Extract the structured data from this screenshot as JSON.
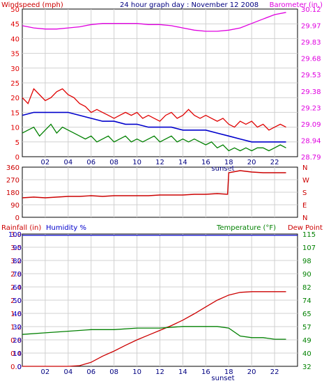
{
  "header": {
    "windspeed_label": "Windspeed (mph)",
    "title": "24 hour graph day : November 12 2008",
    "barometer_label": "Barometer (in.)"
  },
  "colors": {
    "wind_gust": "#e00000",
    "wind_avg": "#0000cc",
    "wind_speed": "#008000",
    "barometer": "#e000e0",
    "direction": "#cc0000",
    "rainfall": "#cc0000",
    "humidity": "#0000cc",
    "temperature": "#008000",
    "dewpoint": "#cc0000",
    "axis_text": "#000080",
    "grid": "#d0d0d0",
    "frame": "#000000"
  },
  "bottom_header": {
    "rainfall_label": "Rainfall (in)",
    "humidity_label": "Humidity %",
    "temperature_label": "Temperature (°F)",
    "dewpoint_label": "Dew Point"
  },
  "x_axis": {
    "ticks": [
      "02",
      "04",
      "06",
      "08",
      "10",
      "12",
      "14",
      "16",
      "18",
      "20",
      "22"
    ],
    "sunset_label": "sunset"
  },
  "chart_data": [
    {
      "type": "line",
      "name": "wind-and-pressure",
      "xlim": [
        0,
        24
      ],
      "left_axis": {
        "label": "Windspeed (mph)",
        "ticks": [
          "0",
          "5",
          "10",
          "15",
          "20",
          "25",
          "30",
          "35",
          "40",
          "45",
          "50"
        ],
        "ylim": [
          0,
          50
        ]
      },
      "right_axis": {
        "label": "Barometer (in.)",
        "ticks": [
          "28.79",
          "28.94",
          "29.09",
          "29.23",
          "29.38",
          "29.53",
          "29.68",
          "29.83",
          "29.97",
          "30.12"
        ],
        "ylim": [
          28.79,
          30.12
        ]
      },
      "series": [
        {
          "name": "gust",
          "axis": "left",
          "x": [
            0,
            0.5,
            1,
            1.5,
            2,
            2.5,
            3,
            3.5,
            4,
            4.5,
            5,
            5.5,
            6,
            6.5,
            7,
            7.5,
            8,
            8.5,
            9,
            9.5,
            10,
            10.5,
            11,
            11.5,
            12,
            12.5,
            13,
            13.5,
            14,
            14.5,
            15,
            15.5,
            16,
            16.5,
            17,
            17.5,
            18,
            18.5,
            19,
            19.5,
            20,
            20.5,
            21,
            21.5,
            22,
            22.5,
            23
          ],
          "values": [
            20,
            18,
            23,
            21,
            19,
            20,
            22,
            23,
            21,
            20,
            18,
            17,
            15,
            16,
            15,
            14,
            13,
            14,
            15,
            14,
            15,
            13,
            14,
            13,
            12,
            14,
            15,
            13,
            14,
            16,
            14,
            13,
            14,
            13,
            12,
            13,
            11,
            10,
            12,
            11,
            12,
            10,
            11,
            9,
            10,
            11,
            10
          ]
        },
        {
          "name": "average",
          "axis": "left",
          "x": [
            0,
            1,
            2,
            3,
            4,
            5,
            6,
            7,
            8,
            9,
            10,
            11,
            12,
            13,
            14,
            15,
            16,
            17,
            18,
            19,
            20,
            21,
            22,
            23
          ],
          "values": [
            14,
            15,
            15,
            15,
            15,
            14,
            13,
            12,
            12,
            11,
            11,
            10,
            10,
            10,
            9,
            9,
            9,
            8,
            7,
            6,
            5,
            5,
            5,
            5
          ]
        },
        {
          "name": "speed",
          "axis": "left",
          "x": [
            0,
            0.5,
            1,
            1.5,
            2,
            2.5,
            3,
            3.5,
            4,
            4.5,
            5,
            5.5,
            6,
            6.5,
            7,
            7.5,
            8,
            8.5,
            9,
            9.5,
            10,
            10.5,
            11,
            11.5,
            12,
            12.5,
            13,
            13.5,
            14,
            14.5,
            15,
            15.5,
            16,
            16.5,
            17,
            17.5,
            18,
            18.5,
            19,
            19.5,
            20,
            20.5,
            21,
            21.5,
            22,
            22.5,
            23
          ],
          "values": [
            8,
            9,
            10,
            7,
            9,
            11,
            8,
            10,
            9,
            8,
            7,
            6,
            7,
            5,
            6,
            7,
            5,
            6,
            7,
            5,
            6,
            5,
            6,
            7,
            5,
            6,
            7,
            5,
            6,
            5,
            6,
            5,
            4,
            5,
            3,
            4,
            2,
            3,
            2,
            3,
            2,
            3,
            3,
            2,
            3,
            4,
            3
          ]
        },
        {
          "name": "barometer",
          "axis": "right",
          "x": [
            0,
            1,
            2,
            3,
            4,
            5,
            6,
            7,
            8,
            9,
            10,
            11,
            12,
            13,
            14,
            15,
            16,
            17,
            18,
            19,
            20,
            21,
            22,
            23
          ],
          "values": [
            29.97,
            29.95,
            29.94,
            29.94,
            29.95,
            29.96,
            29.98,
            29.99,
            29.99,
            29.99,
            29.99,
            29.98,
            29.98,
            29.97,
            29.95,
            29.93,
            29.92,
            29.92,
            29.93,
            29.95,
            29.99,
            30.03,
            30.07,
            30.09
          ]
        }
      ]
    },
    {
      "type": "line",
      "name": "wind-direction",
      "xlim": [
        0,
        24
      ],
      "left_axis": {
        "ticks": [
          "0",
          "90",
          "180",
          "270",
          "360"
        ],
        "ylim": [
          0,
          360
        ]
      },
      "right_axis": {
        "ticks": [
          "N",
          "E",
          "S",
          "W",
          "N"
        ]
      },
      "series": [
        {
          "name": "direction",
          "x": [
            0,
            1,
            2,
            3,
            4,
            5,
            6,
            7,
            8,
            9,
            10,
            11,
            12,
            13,
            14,
            15,
            16,
            17,
            17.9,
            18,
            19,
            20,
            21,
            22,
            23
          ],
          "values": [
            140,
            145,
            140,
            145,
            150,
            150,
            155,
            150,
            155,
            155,
            155,
            155,
            160,
            160,
            160,
            165,
            165,
            170,
            165,
            320,
            335,
            325,
            320,
            320,
            320
          ]
        }
      ]
    },
    {
      "type": "line",
      "name": "rain-humidity-temperature",
      "xlim": [
        0,
        24
      ],
      "left_axis": {
        "label": "Humidity %",
        "ticks": [
          "0",
          "10",
          "20",
          "30",
          "40",
          "50",
          "60",
          "70",
          "80",
          "90",
          "100"
        ],
        "ylim": [
          0,
          100
        ]
      },
      "rain_axis": {
        "label": "Rainfall (in)",
        "ticks": [
          "0.0",
          "0.4",
          "0.8",
          "1.2",
          "1.6",
          "2.0",
          "2.4",
          "2.8",
          "3.2",
          "3.5",
          "3.9"
        ]
      },
      "right_axis": {
        "label": "Temperature (°F)",
        "ticks": [
          "32",
          "40",
          "49",
          "57",
          "65",
          "74",
          "82",
          "90",
          "98",
          "107",
          "115"
        ],
        "ylim": [
          32,
          115
        ]
      },
      "series": [
        {
          "name": "humidity",
          "axis": "left",
          "x": [
            0,
            24
          ],
          "values": [
            99,
            99
          ]
        },
        {
          "name": "rainfall",
          "axis": "rain",
          "x": [
            0,
            1,
            2,
            3,
            4,
            5,
            6,
            7,
            8,
            9,
            10,
            11,
            12,
            13,
            14,
            15,
            16,
            17,
            18,
            19,
            20,
            21,
            22,
            23
          ],
          "values": [
            0,
            0,
            0,
            0,
            0,
            0.02,
            0.12,
            0.3,
            0.45,
            0.62,
            0.78,
            0.92,
            1.06,
            1.2,
            1.36,
            1.55,
            1.75,
            1.95,
            2.1,
            2.18,
            2.2,
            2.2,
            2.2,
            2.2
          ]
        },
        {
          "name": "temperature",
          "axis": "right",
          "x": [
            0,
            2,
            4,
            6,
            8,
            10,
            12,
            14,
            16,
            17,
            18,
            19,
            20,
            21,
            22,
            23
          ],
          "values": [
            52,
            53,
            54,
            55,
            55,
            56,
            56,
            57,
            57,
            57,
            56,
            51,
            50,
            50,
            49,
            49
          ]
        }
      ]
    }
  ]
}
